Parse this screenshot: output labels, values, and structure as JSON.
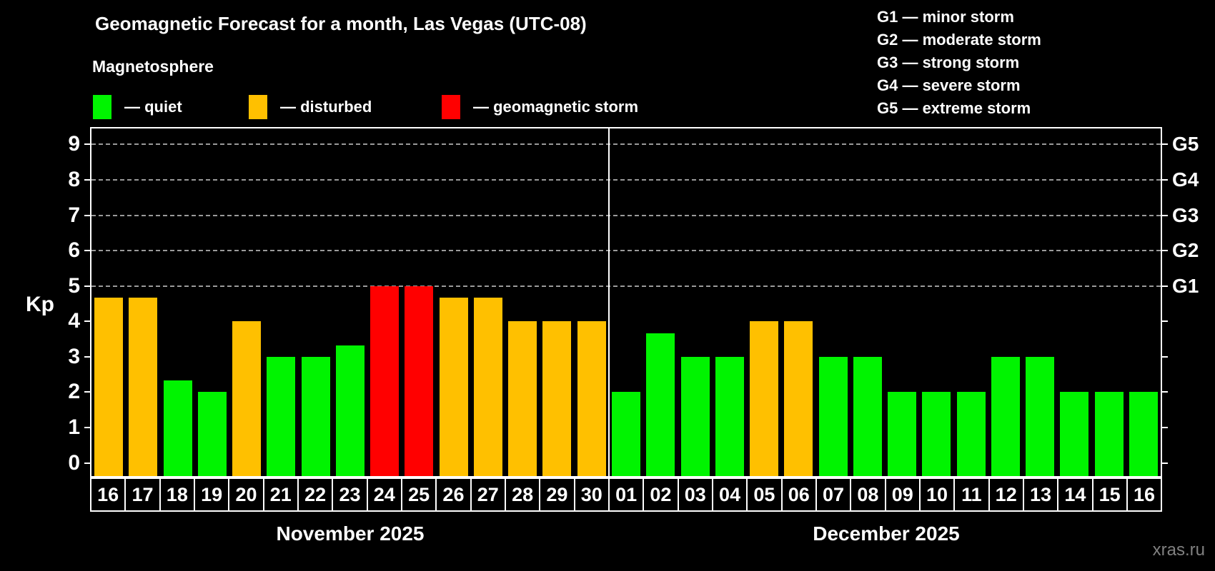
{
  "title": "Geomagnetic Forecast for a month, Las Vegas (UTC-08)",
  "subtitle": "Magnetosphere",
  "legend": {
    "items": [
      {
        "label": "— quiet",
        "status": "quiet"
      },
      {
        "label": "— disturbed",
        "status": "disturbed"
      },
      {
        "label": "— geomagnetic storm",
        "status": "storm"
      }
    ]
  },
  "storm_scale_legend": {
    "items": [
      "G1 — minor storm",
      "G2 — moderate storm",
      "G3 — strong storm",
      "G4 — severe storm",
      "G5 — extreme storm"
    ]
  },
  "colors": {
    "quiet": "#00f400",
    "disturbed": "#ffc000",
    "storm": "#ff0000",
    "background": "#000000",
    "axis": "#ffffff",
    "grid": "#9a9a9a",
    "watermark": "#808080"
  },
  "y_axis": {
    "label": "Kp",
    "ticks": [
      0,
      1,
      2,
      3,
      4,
      5,
      6,
      7,
      8,
      9
    ]
  },
  "right_axis": {
    "labels": [
      {
        "value": 9,
        "label": "G5"
      },
      {
        "value": 8,
        "label": "G4"
      },
      {
        "value": 7,
        "label": "G3"
      },
      {
        "value": 6,
        "label": "G2"
      },
      {
        "value": 5,
        "label": "G1"
      }
    ]
  },
  "watermark": "xras.ru",
  "chart_data": {
    "type": "bar",
    "title": "Geomagnetic Forecast for a month, Las Vegas (UTC-08)",
    "subtitle": "Magnetosphere",
    "ylabel": "Kp",
    "ylim": [
      0,
      9
    ],
    "grid_values": [
      5,
      6,
      7,
      8,
      9
    ],
    "legend_note": "quiet=green, disturbed=orange, geomagnetic storm=red; right axis G1..G5 at Kp 5..9",
    "months": [
      {
        "name": "November 2025",
        "days": [
          {
            "day": "16",
            "kp": 4.67,
            "status": "disturbed"
          },
          {
            "day": "17",
            "kp": 4.67,
            "status": "disturbed"
          },
          {
            "day": "18",
            "kp": 2.33,
            "status": "quiet"
          },
          {
            "day": "19",
            "kp": 2.0,
            "status": "quiet"
          },
          {
            "day": "20",
            "kp": 4.0,
            "status": "disturbed"
          },
          {
            "day": "21",
            "kp": 3.0,
            "status": "quiet"
          },
          {
            "day": "22",
            "kp": 3.0,
            "status": "quiet"
          },
          {
            "day": "23",
            "kp": 3.33,
            "status": "quiet"
          },
          {
            "day": "24",
            "kp": 5.0,
            "status": "storm"
          },
          {
            "day": "25",
            "kp": 5.0,
            "status": "storm"
          },
          {
            "day": "26",
            "kp": 4.67,
            "status": "disturbed"
          },
          {
            "day": "27",
            "kp": 4.67,
            "status": "disturbed"
          },
          {
            "day": "28",
            "kp": 4.0,
            "status": "disturbed"
          },
          {
            "day": "29",
            "kp": 4.0,
            "status": "disturbed"
          },
          {
            "day": "30",
            "kp": 4.0,
            "status": "disturbed"
          }
        ]
      },
      {
        "name": "December 2025",
        "days": [
          {
            "day": "01",
            "kp": 2.0,
            "status": "quiet"
          },
          {
            "day": "02",
            "kp": 3.67,
            "status": "quiet"
          },
          {
            "day": "03",
            "kp": 3.0,
            "status": "quiet"
          },
          {
            "day": "04",
            "kp": 3.0,
            "status": "quiet"
          },
          {
            "day": "05",
            "kp": 4.0,
            "status": "disturbed"
          },
          {
            "day": "06",
            "kp": 4.0,
            "status": "disturbed"
          },
          {
            "day": "07",
            "kp": 3.0,
            "status": "quiet"
          },
          {
            "day": "08",
            "kp": 3.0,
            "status": "quiet"
          },
          {
            "day": "09",
            "kp": 2.0,
            "status": "quiet"
          },
          {
            "day": "10",
            "kp": 2.0,
            "status": "quiet"
          },
          {
            "day": "11",
            "kp": 2.0,
            "status": "quiet"
          },
          {
            "day": "12",
            "kp": 3.0,
            "status": "quiet"
          },
          {
            "day": "13",
            "kp": 3.0,
            "status": "quiet"
          },
          {
            "day": "14",
            "kp": 2.0,
            "status": "quiet"
          },
          {
            "day": "15",
            "kp": 2.0,
            "status": "quiet"
          },
          {
            "day": "16",
            "kp": 2.0,
            "status": "quiet"
          }
        ]
      }
    ]
  }
}
